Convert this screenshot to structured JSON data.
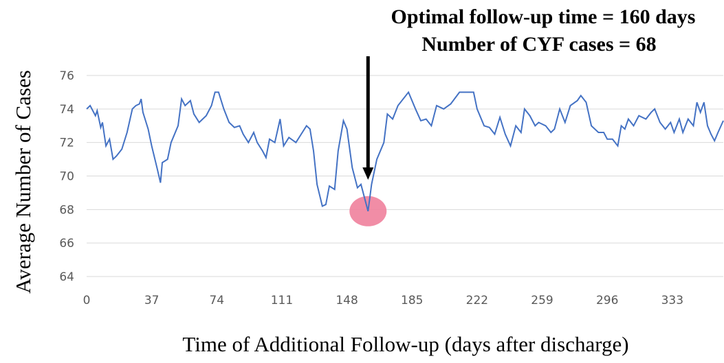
{
  "chart_data": {
    "type": "line",
    "annotations": [
      "Optimal follow-up time = 160 days",
      "Number of CYF cases =  68"
    ],
    "x_label": "Time of Additional Follow-up (days after discharge)",
    "y_label": "Average Number of Cases",
    "xlim": [
      0,
      362
    ],
    "ylim": [
      64,
      76
    ],
    "xticks": [
      0,
      37,
      74,
      111,
      148,
      185,
      222,
      259,
      296,
      333
    ],
    "yticks": [
      64,
      66,
      68,
      70,
      72,
      74,
      76
    ],
    "grid": true,
    "series": [
      {
        "name": "Average Number of Cases",
        "color": "#4472c4",
        "x": [
          0,
          2,
          5,
          6,
          8,
          9,
          11,
          13,
          15,
          17,
          20,
          23,
          26,
          28,
          30,
          31,
          32,
          35,
          37,
          40,
          42,
          43,
          46,
          48,
          52,
          54,
          56,
          59,
          61,
          64,
          68,
          71,
          73,
          75,
          78,
          81,
          84,
          87,
          89,
          92,
          95,
          97,
          100,
          102,
          104,
          107,
          110,
          112,
          115,
          119,
          122,
          125,
          127,
          129,
          131,
          134,
          136,
          138,
          141,
          143,
          146,
          148,
          151,
          154,
          156,
          160,
          162,
          165,
          169,
          171,
          174,
          177,
          183,
          187,
          190,
          193,
          196,
          199,
          203,
          207,
          212,
          220,
          222,
          226,
          229,
          232,
          235,
          238,
          241,
          244,
          247,
          249,
          252,
          255,
          257,
          261,
          264,
          266,
          269,
          272,
          275,
          279,
          281,
          284,
          287,
          291,
          294,
          296,
          299,
          302,
          304,
          306,
          308,
          311,
          314,
          318,
          321,
          323,
          326,
          329,
          332,
          334,
          337,
          339,
          342,
          345,
          347,
          349,
          351,
          353,
          355,
          357,
          359,
          362
        ],
        "values": [
          74.0,
          74.2,
          73.6,
          73.9,
          72.9,
          73.2,
          71.8,
          72.2,
          71.0,
          71.2,
          71.6,
          72.6,
          74.0,
          74.2,
          74.3,
          74.6,
          73.8,
          72.8,
          71.8,
          70.5,
          69.6,
          70.8,
          71.0,
          72.0,
          73.0,
          74.6,
          74.2,
          74.5,
          73.7,
          73.2,
          73.6,
          74.2,
          75.0,
          75.0,
          74.0,
          73.2,
          72.9,
          73.0,
          72.5,
          72.0,
          72.6,
          72.0,
          71.5,
          71.1,
          72.2,
          72.0,
          73.4,
          71.8,
          72.3,
          72.0,
          72.5,
          73.0,
          72.8,
          71.5,
          69.5,
          68.2,
          68.3,
          69.4,
          69.2,
          71.5,
          73.3,
          72.8,
          70.5,
          69.3,
          69.5,
          67.9,
          69.5,
          71.0,
          72.0,
          73.7,
          73.4,
          74.2,
          75.0,
          74.0,
          73.3,
          73.4,
          73.0,
          74.2,
          74.0,
          74.3,
          75.0,
          75.0,
          74.0,
          73.0,
          72.9,
          72.5,
          73.5,
          72.5,
          71.8,
          73.0,
          72.6,
          74.0,
          73.6,
          73.0,
          73.2,
          73.0,
          72.6,
          72.8,
          74.0,
          73.2,
          74.2,
          74.5,
          74.8,
          74.4,
          73.0,
          72.6,
          72.6,
          72.2,
          72.2,
          71.8,
          73.0,
          72.8,
          73.4,
          73.0,
          73.6,
          73.4,
          73.8,
          74.0,
          73.2,
          72.8,
          73.2,
          72.6,
          73.4,
          72.6,
          73.4,
          73.0,
          74.4,
          73.8,
          74.4,
          73.0,
          72.5,
          72.1,
          72.6,
          73.3
        ]
      }
    ]
  }
}
